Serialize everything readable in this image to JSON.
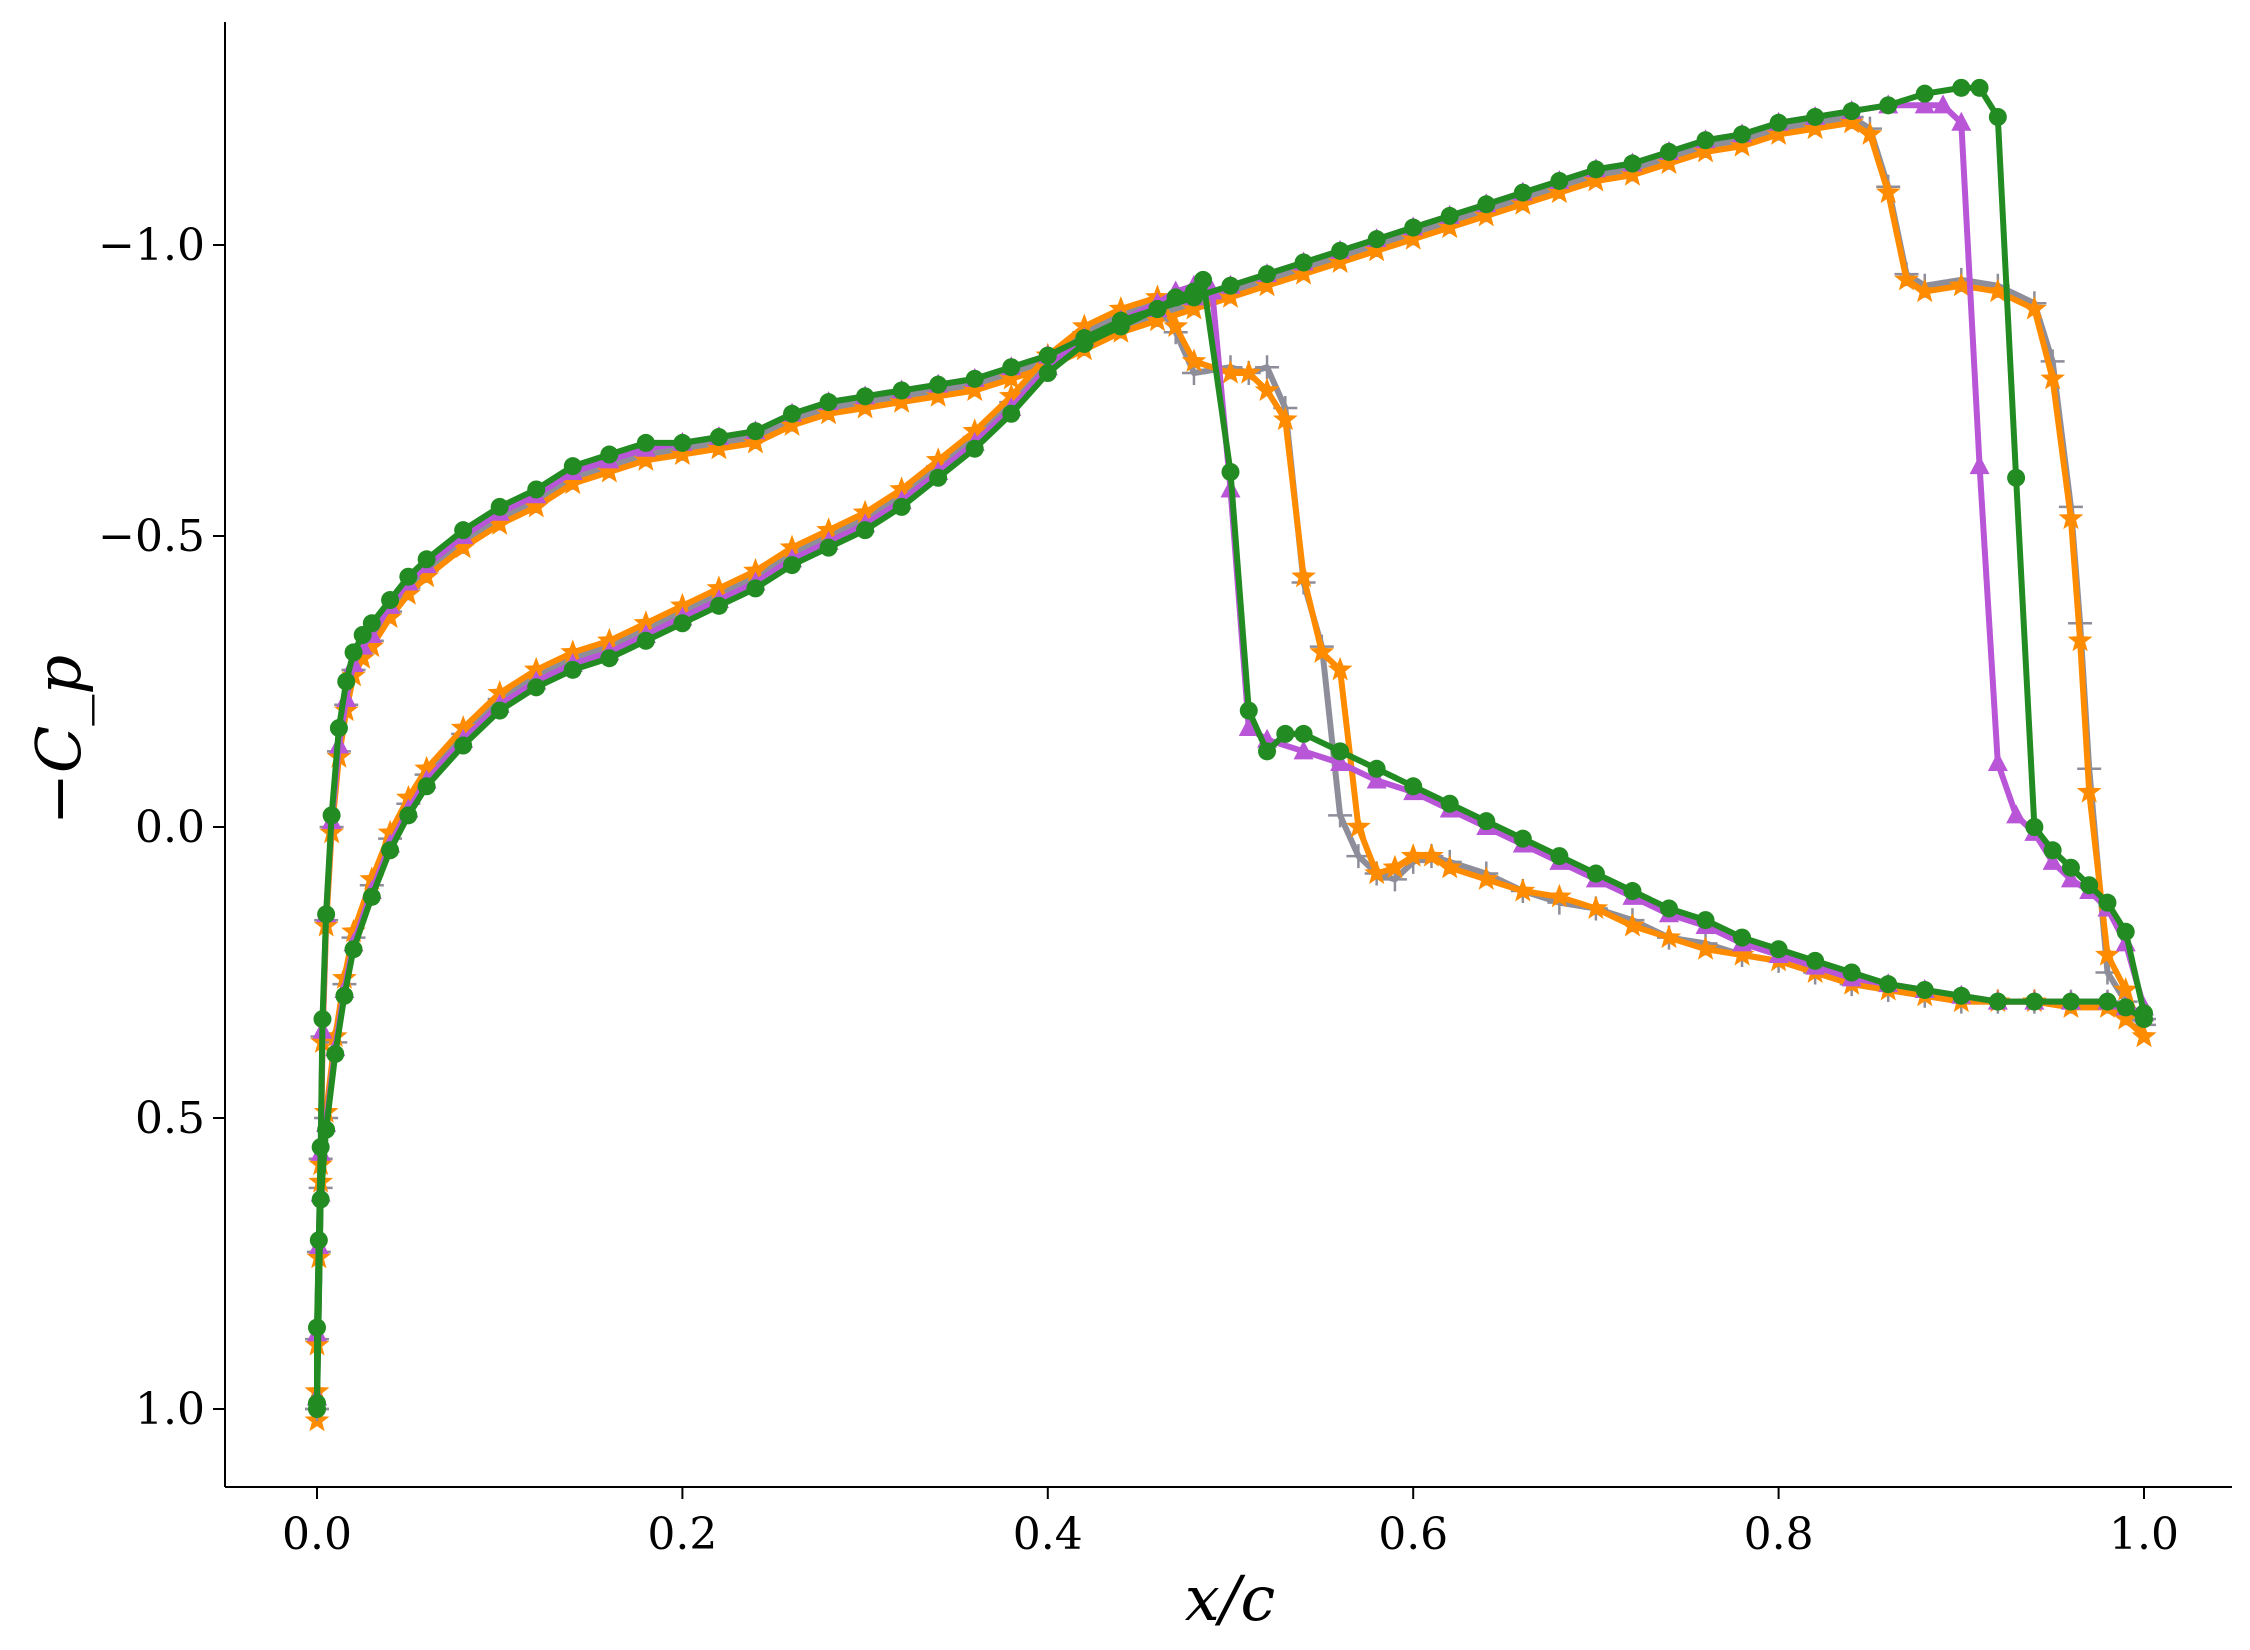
{
  "chart_data": {
    "type": "line",
    "title": "",
    "xlabel": "x/c",
    "ylabel": "−C_p",
    "xlim": [
      -0.05,
      1.05
    ],
    "ylim": [
      1.12,
      -1.37
    ],
    "y_inverted": true,
    "grid": false,
    "legend": "none",
    "xticks": [
      {
        "value": 0.0,
        "label": "0.0"
      },
      {
        "value": 0.2,
        "label": "0.2"
      },
      {
        "value": 0.4,
        "label": "0.4"
      },
      {
        "value": 0.6,
        "label": "0.6"
      },
      {
        "value": 0.8,
        "label": "0.8"
      },
      {
        "value": 1.0,
        "label": "1.0"
      }
    ],
    "yticks": [
      {
        "value": -1.0,
        "label": "−1.0"
      },
      {
        "value": -0.5,
        "label": "−0.5"
      },
      {
        "value": 0.0,
        "label": "0.0"
      },
      {
        "value": 0.5,
        "label": "0.5"
      },
      {
        "value": 1.0,
        "label": "1.0"
      }
    ],
    "series": [
      {
        "color": "#8e8e9a",
        "marker": "plus",
        "x": [
          0.0,
          0.0,
          0.001,
          0.002,
          0.003,
          0.005,
          0.008,
          0.012,
          0.016,
          0.02,
          0.025,
          0.03,
          0.04,
          0.05,
          0.06,
          0.08,
          0.1,
          0.12,
          0.14,
          0.16,
          0.18,
          0.2,
          0.22,
          0.24,
          0.26,
          0.28,
          0.3,
          0.32,
          0.34,
          0.36,
          0.38,
          0.4,
          0.42,
          0.44,
          0.46,
          0.48,
          0.5,
          0.52,
          0.54,
          0.56,
          0.58,
          0.6,
          0.62,
          0.64,
          0.66,
          0.68,
          0.7,
          0.72,
          0.74,
          0.76,
          0.78,
          0.8,
          0.82,
          0.84,
          0.85,
          0.86,
          0.87,
          0.88,
          0.9,
          0.92,
          0.94,
          0.95,
          0.96,
          0.965,
          0.97,
          0.98,
          0.99,
          1.0
        ],
        "y": [
          1.0,
          0.88,
          0.73,
          0.57,
          0.36,
          0.16,
          0.0,
          -0.13,
          -0.21,
          -0.27,
          -0.3,
          -0.32,
          -0.37,
          -0.41,
          -0.44,
          -0.49,
          -0.53,
          -0.56,
          -0.6,
          -0.62,
          -0.64,
          -0.65,
          -0.66,
          -0.67,
          -0.7,
          -0.72,
          -0.73,
          -0.74,
          -0.75,
          -0.76,
          -0.78,
          -0.8,
          -0.83,
          -0.86,
          -0.88,
          -0.9,
          -0.92,
          -0.94,
          -0.96,
          -0.98,
          -1.0,
          -1.02,
          -1.04,
          -1.06,
          -1.08,
          -1.1,
          -1.12,
          -1.13,
          -1.15,
          -1.17,
          -1.18,
          -1.2,
          -1.21,
          -1.22,
          -1.2,
          -1.1,
          -0.95,
          -0.93,
          -0.94,
          -0.93,
          -0.9,
          -0.8,
          -0.55,
          -0.35,
          -0.1,
          0.25,
          0.3,
          0.33
        ]
      },
      {
        "color": "#ff8c00",
        "marker": "star",
        "x": [
          0.0,
          0.0,
          0.001,
          0.002,
          0.003,
          0.005,
          0.008,
          0.012,
          0.016,
          0.02,
          0.025,
          0.03,
          0.04,
          0.05,
          0.06,
          0.08,
          0.1,
          0.12,
          0.14,
          0.16,
          0.18,
          0.2,
          0.22,
          0.24,
          0.26,
          0.28,
          0.3,
          0.32,
          0.34,
          0.36,
          0.38,
          0.4,
          0.42,
          0.44,
          0.46,
          0.48,
          0.5,
          0.52,
          0.54,
          0.56,
          0.58,
          0.6,
          0.62,
          0.64,
          0.66,
          0.68,
          0.7,
          0.72,
          0.74,
          0.76,
          0.78,
          0.8,
          0.82,
          0.84,
          0.85,
          0.86,
          0.87,
          0.88,
          0.9,
          0.92,
          0.94,
          0.95,
          0.96,
          0.965,
          0.97,
          0.98,
          0.99,
          1.0
        ],
        "y": [
          1.02,
          0.89,
          0.74,
          0.58,
          0.37,
          0.17,
          0.01,
          -0.12,
          -0.2,
          -0.26,
          -0.29,
          -0.31,
          -0.36,
          -0.4,
          -0.43,
          -0.48,
          -0.52,
          -0.55,
          -0.59,
          -0.61,
          -0.63,
          -0.64,
          -0.65,
          -0.66,
          -0.69,
          -0.71,
          -0.72,
          -0.73,
          -0.74,
          -0.75,
          -0.77,
          -0.79,
          -0.82,
          -0.85,
          -0.87,
          -0.89,
          -0.91,
          -0.93,
          -0.95,
          -0.97,
          -0.99,
          -1.01,
          -1.03,
          -1.05,
          -1.07,
          -1.09,
          -1.11,
          -1.12,
          -1.14,
          -1.16,
          -1.17,
          -1.19,
          -1.2,
          -1.21,
          -1.19,
          -1.09,
          -0.94,
          -0.92,
          -0.93,
          -0.92,
          -0.89,
          -0.77,
          -0.53,
          -0.32,
          -0.06,
          0.22,
          0.28,
          0.36
        ]
      },
      {
        "color": "#8e8e9a",
        "marker": "plus",
        "x": [
          0.0,
          0.002,
          0.005,
          0.01,
          0.015,
          0.02,
          0.03,
          0.04,
          0.05,
          0.06,
          0.08,
          0.1,
          0.12,
          0.14,
          0.16,
          0.18,
          0.2,
          0.22,
          0.24,
          0.26,
          0.28,
          0.3,
          0.32,
          0.34,
          0.36,
          0.38,
          0.4,
          0.42,
          0.44,
          0.46,
          0.47,
          0.48,
          0.5,
          0.51,
          0.52,
          0.53,
          0.54,
          0.55,
          0.56,
          0.57,
          0.58,
          0.59,
          0.6,
          0.61,
          0.62,
          0.64,
          0.66,
          0.68,
          0.7,
          0.72,
          0.74,
          0.76,
          0.78,
          0.8,
          0.82,
          0.84,
          0.86,
          0.88,
          0.9,
          0.92,
          0.94,
          0.96,
          0.98,
          0.99,
          1.0
        ],
        "y": [
          1.0,
          0.62,
          0.5,
          0.37,
          0.27,
          0.19,
          0.1,
          0.02,
          -0.04,
          -0.09,
          -0.16,
          -0.22,
          -0.26,
          -0.29,
          -0.31,
          -0.34,
          -0.37,
          -0.4,
          -0.43,
          -0.47,
          -0.5,
          -0.53,
          -0.57,
          -0.62,
          -0.67,
          -0.73,
          -0.8,
          -0.85,
          -0.88,
          -0.9,
          -0.85,
          -0.78,
          -0.79,
          -0.78,
          -0.79,
          -0.72,
          -0.42,
          -0.31,
          -0.02,
          0.05,
          0.08,
          0.09,
          0.06,
          0.05,
          0.06,
          0.08,
          0.11,
          0.13,
          0.14,
          0.16,
          0.19,
          0.2,
          0.22,
          0.23,
          0.25,
          0.27,
          0.28,
          0.29,
          0.3,
          0.3,
          0.3,
          0.3,
          0.3,
          0.32,
          0.34
        ]
      },
      {
        "color": "#ff8c00",
        "marker": "star",
        "x": [
          0.0,
          0.002,
          0.005,
          0.01,
          0.015,
          0.02,
          0.03,
          0.04,
          0.05,
          0.06,
          0.08,
          0.1,
          0.12,
          0.14,
          0.16,
          0.18,
          0.2,
          0.22,
          0.24,
          0.26,
          0.28,
          0.3,
          0.32,
          0.34,
          0.36,
          0.38,
          0.4,
          0.42,
          0.44,
          0.46,
          0.47,
          0.48,
          0.5,
          0.51,
          0.52,
          0.53,
          0.54,
          0.55,
          0.56,
          0.57,
          0.58,
          0.59,
          0.6,
          0.61,
          0.62,
          0.64,
          0.66,
          0.68,
          0.7,
          0.72,
          0.74,
          0.76,
          0.78,
          0.8,
          0.82,
          0.84,
          0.86,
          0.88,
          0.9,
          0.92,
          0.94,
          0.96,
          0.98,
          0.99,
          1.0
        ],
        "y": [
          0.97,
          0.61,
          0.49,
          0.36,
          0.26,
          0.18,
          0.09,
          0.01,
          -0.05,
          -0.1,
          -0.17,
          -0.23,
          -0.27,
          -0.3,
          -0.32,
          -0.35,
          -0.38,
          -0.41,
          -0.44,
          -0.48,
          -0.51,
          -0.54,
          -0.58,
          -0.63,
          -0.68,
          -0.74,
          -0.81,
          -0.86,
          -0.89,
          -0.91,
          -0.86,
          -0.8,
          -0.78,
          -0.78,
          -0.75,
          -0.7,
          -0.43,
          -0.3,
          -0.27,
          0.0,
          0.08,
          0.07,
          0.05,
          0.05,
          0.07,
          0.09,
          0.11,
          0.12,
          0.14,
          0.17,
          0.19,
          0.21,
          0.22,
          0.23,
          0.25,
          0.27,
          0.28,
          0.29,
          0.3,
          0.3,
          0.3,
          0.31,
          0.31,
          0.33,
          0.36
        ]
      },
      {
        "color": "#b856d7",
        "marker": "triangle",
        "x": [
          0.0,
          0.0,
          0.001,
          0.002,
          0.003,
          0.005,
          0.008,
          0.012,
          0.016,
          0.02,
          0.025,
          0.03,
          0.04,
          0.05,
          0.06,
          0.08,
          0.1,
          0.12,
          0.14,
          0.16,
          0.18,
          0.2,
          0.22,
          0.24,
          0.26,
          0.28,
          0.3,
          0.32,
          0.34,
          0.36,
          0.38,
          0.4,
          0.42,
          0.44,
          0.46,
          0.48,
          0.5,
          0.52,
          0.54,
          0.56,
          0.58,
          0.6,
          0.62,
          0.64,
          0.66,
          0.68,
          0.7,
          0.72,
          0.74,
          0.76,
          0.78,
          0.8,
          0.82,
          0.84,
          0.86,
          0.88,
          0.89,
          0.9,
          0.91,
          0.92,
          0.93,
          0.94,
          0.95,
          0.96,
          0.97,
          0.98,
          0.99,
          1.0
        ],
        "y": [
          0.98,
          0.87,
          0.72,
          0.56,
          0.35,
          0.15,
          -0.01,
          -0.14,
          -0.22,
          -0.28,
          -0.31,
          -0.33,
          -0.38,
          -0.42,
          -0.45,
          -0.5,
          -0.54,
          -0.57,
          -0.61,
          -0.63,
          -0.65,
          -0.66,
          -0.67,
          -0.68,
          -0.71,
          -0.73,
          -0.74,
          -0.75,
          -0.76,
          -0.77,
          -0.79,
          -0.81,
          -0.84,
          -0.87,
          -0.89,
          -0.91,
          -0.93,
          -0.95,
          -0.97,
          -0.99,
          -1.01,
          -1.03,
          -1.05,
          -1.07,
          -1.09,
          -1.11,
          -1.13,
          -1.14,
          -1.16,
          -1.18,
          -1.19,
          -1.21,
          -1.22,
          -1.23,
          -1.24,
          -1.24,
          -1.24,
          -1.21,
          -0.62,
          -0.11,
          -0.02,
          0.01,
          0.06,
          0.09,
          0.11,
          0.14,
          0.2,
          0.31
        ]
      },
      {
        "color": "#b856d7",
        "marker": "triangle",
        "x": [
          0.0,
          0.002,
          0.005,
          0.01,
          0.015,
          0.02,
          0.03,
          0.04,
          0.05,
          0.06,
          0.08,
          0.1,
          0.12,
          0.14,
          0.16,
          0.18,
          0.2,
          0.22,
          0.24,
          0.26,
          0.28,
          0.3,
          0.32,
          0.34,
          0.36,
          0.38,
          0.4,
          0.42,
          0.44,
          0.46,
          0.47,
          0.48,
          0.49,
          0.5,
          0.51,
          0.52,
          0.54,
          0.56,
          0.58,
          0.6,
          0.62,
          0.64,
          0.66,
          0.68,
          0.7,
          0.72,
          0.74,
          0.76,
          0.78,
          0.8,
          0.82,
          0.84,
          0.86,
          0.88,
          0.9,
          0.92,
          0.94,
          0.96,
          0.98,
          0.99,
          1.0
        ],
        "y": [
          0.98,
          0.63,
          0.51,
          0.38,
          0.28,
          0.2,
          0.11,
          0.03,
          -0.03,
          -0.08,
          -0.15,
          -0.21,
          -0.25,
          -0.28,
          -0.3,
          -0.33,
          -0.36,
          -0.39,
          -0.42,
          -0.46,
          -0.49,
          -0.52,
          -0.56,
          -0.61,
          -0.66,
          -0.72,
          -0.79,
          -0.84,
          -0.87,
          -0.9,
          -0.92,
          -0.93,
          -0.92,
          -0.58,
          -0.17,
          -0.15,
          -0.13,
          -0.11,
          -0.08,
          -0.06,
          -0.03,
          0.0,
          0.03,
          0.06,
          0.09,
          0.12,
          0.15,
          0.17,
          0.2,
          0.22,
          0.24,
          0.26,
          0.27,
          0.28,
          0.29,
          0.3,
          0.3,
          0.3,
          0.3,
          0.31,
          0.32
        ]
      },
      {
        "color": "#228b22",
        "marker": "circle",
        "x": [
          0.0,
          0.0,
          0.001,
          0.002,
          0.003,
          0.005,
          0.008,
          0.012,
          0.016,
          0.02,
          0.025,
          0.03,
          0.04,
          0.05,
          0.06,
          0.08,
          0.1,
          0.12,
          0.14,
          0.16,
          0.18,
          0.2,
          0.22,
          0.24,
          0.26,
          0.28,
          0.3,
          0.32,
          0.34,
          0.36,
          0.38,
          0.4,
          0.42,
          0.44,
          0.46,
          0.48,
          0.5,
          0.52,
          0.54,
          0.56,
          0.58,
          0.6,
          0.62,
          0.64,
          0.66,
          0.68,
          0.7,
          0.72,
          0.74,
          0.76,
          0.78,
          0.8,
          0.82,
          0.84,
          0.86,
          0.88,
          0.9,
          0.91,
          0.92,
          0.93,
          0.94,
          0.95,
          0.96,
          0.97,
          0.98,
          0.99,
          1.0
        ],
        "y": [
          0.99,
          0.86,
          0.71,
          0.55,
          0.33,
          0.15,
          -0.02,
          -0.17,
          -0.25,
          -0.3,
          -0.33,
          -0.35,
          -0.39,
          -0.43,
          -0.46,
          -0.51,
          -0.55,
          -0.58,
          -0.62,
          -0.64,
          -0.66,
          -0.66,
          -0.67,
          -0.68,
          -0.71,
          -0.73,
          -0.74,
          -0.75,
          -0.76,
          -0.77,
          -0.79,
          -0.81,
          -0.84,
          -0.87,
          -0.89,
          -0.91,
          -0.93,
          -0.95,
          -0.97,
          -0.99,
          -1.01,
          -1.03,
          -1.05,
          -1.07,
          -1.09,
          -1.11,
          -1.13,
          -1.14,
          -1.16,
          -1.18,
          -1.19,
          -1.21,
          -1.22,
          -1.23,
          -1.24,
          -1.26,
          -1.27,
          -1.27,
          -1.22,
          -0.6,
          0.0,
          0.04,
          0.07,
          0.1,
          0.13,
          0.18,
          0.32
        ]
      },
      {
        "color": "#228b22",
        "marker": "circle",
        "x": [
          0.0,
          0.002,
          0.005,
          0.01,
          0.015,
          0.02,
          0.03,
          0.04,
          0.05,
          0.06,
          0.08,
          0.1,
          0.12,
          0.14,
          0.16,
          0.18,
          0.2,
          0.22,
          0.24,
          0.26,
          0.28,
          0.3,
          0.32,
          0.34,
          0.36,
          0.38,
          0.4,
          0.42,
          0.44,
          0.46,
          0.47,
          0.48,
          0.485,
          0.5,
          0.51,
          0.52,
          0.53,
          0.54,
          0.56,
          0.58,
          0.6,
          0.62,
          0.64,
          0.66,
          0.68,
          0.7,
          0.72,
          0.74,
          0.76,
          0.78,
          0.8,
          0.82,
          0.84,
          0.86,
          0.88,
          0.9,
          0.92,
          0.94,
          0.96,
          0.98,
          0.99,
          1.0
        ],
        "y": [
          1.0,
          0.64,
          0.52,
          0.39,
          0.29,
          0.21,
          0.12,
          0.04,
          -0.02,
          -0.07,
          -0.14,
          -0.2,
          -0.24,
          -0.27,
          -0.29,
          -0.32,
          -0.35,
          -0.38,
          -0.41,
          -0.45,
          -0.48,
          -0.51,
          -0.55,
          -0.6,
          -0.65,
          -0.71,
          -0.78,
          -0.83,
          -0.86,
          -0.89,
          -0.91,
          -0.92,
          -0.94,
          -0.61,
          -0.2,
          -0.13,
          -0.16,
          -0.16,
          -0.13,
          -0.1,
          -0.07,
          -0.04,
          -0.01,
          0.02,
          0.05,
          0.08,
          0.11,
          0.14,
          0.16,
          0.19,
          0.21,
          0.23,
          0.25,
          0.27,
          0.28,
          0.29,
          0.3,
          0.3,
          0.3,
          0.3,
          0.31,
          0.33
        ]
      }
    ]
  }
}
